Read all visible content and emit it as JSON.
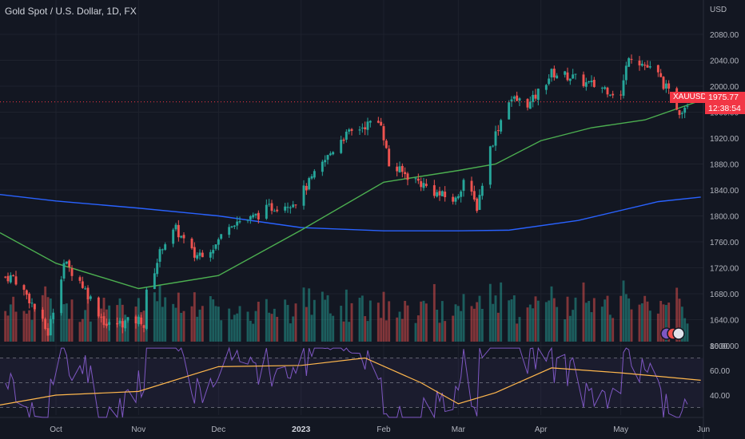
{
  "header": {
    "title": "Gold Spot / U.S. Dollar, 1D, FX"
  },
  "price_axis": {
    "currency": "USD",
    "ticks": [
      "2080.00",
      "2040.00",
      "2000.00",
      "1960.00",
      "1920.00",
      "1880.00",
      "1840.00",
      "1800.00",
      "1760.00",
      "1720.00",
      "1680.00",
      "1640.00",
      "1600.00"
    ]
  },
  "rsi_axis": {
    "ticks": [
      "80.00",
      "60.00",
      "40.00"
    ]
  },
  "time_axis": {
    "labels": [
      "Oct",
      "Nov",
      "Dec",
      "2023",
      "Feb",
      "Mar",
      "Apr",
      "May",
      "Jun"
    ]
  },
  "last_price": {
    "symbol": "XAUUSD",
    "value": "1975.77",
    "countdown": "12:38:54"
  },
  "colors": {
    "background": "#131722",
    "up": "#26a69a",
    "down": "#ef5350",
    "ma_fast": "#4caf50",
    "ma_slow": "#2962ff",
    "rsi": "#7e57c2",
    "rsi_ma": "#ffb74d"
  },
  "chart_data": {
    "type": "candlestick",
    "x_range": [
      "2022-09-10",
      "2023-06-01"
    ],
    "price_range": [
      1590,
      2100
    ],
    "rsi_range": [
      20,
      85
    ],
    "rsi_levels": [
      70,
      50,
      30
    ],
    "anchors": [
      [
        "2022-09-15",
        1706
      ],
      [
        "2022-09-21",
        1672
      ],
      [
        "2022-09-28",
        1619
      ],
      [
        "2022-10-04",
        1728
      ],
      [
        "2022-10-10",
        1700
      ],
      [
        "2022-10-20",
        1631
      ],
      [
        "2022-11-02",
        1640
      ],
      [
        "2022-11-03",
        1630
      ],
      [
        "2022-11-04",
        1680
      ],
      [
        "2022-11-10",
        1755
      ],
      [
        "2022-11-15",
        1779
      ],
      [
        "2022-11-22",
        1738
      ],
      [
        "2022-11-30",
        1755
      ],
      [
        "2022-12-05",
        1790
      ],
      [
        "2022-12-13",
        1795
      ],
      [
        "2022-12-20",
        1812
      ],
      [
        "2022-12-30",
        1823
      ],
      [
        "2023-01-06",
        1862
      ],
      [
        "2023-01-16",
        1920
      ],
      [
        "2023-01-25",
        1940
      ],
      [
        "2023-01-31",
        1945
      ],
      [
        "2023-02-03",
        1878
      ],
      [
        "2023-02-14",
        1853
      ],
      [
        "2023-02-22",
        1832
      ],
      [
        "2023-02-28",
        1824
      ],
      [
        "2023-03-03",
        1856
      ],
      [
        "2023-03-08",
        1814
      ],
      [
        "2023-03-13",
        1905
      ],
      [
        "2023-03-20",
        1981
      ],
      [
        "2023-03-28",
        1973
      ],
      [
        "2023-04-05",
        2020
      ],
      [
        "2023-04-12",
        2015
      ],
      [
        "2023-04-18",
        2004
      ],
      [
        "2023-04-25",
        1997
      ],
      [
        "2023-05-01",
        1985
      ],
      [
        "2023-05-04",
        2050
      ],
      [
        "2023-05-09",
        2035
      ],
      [
        "2023-05-15",
        2017
      ],
      [
        "2023-05-23",
        1962
      ],
      [
        "2023-05-26",
        1975
      ]
    ],
    "ma_slow": [
      [
        "2022-09-10",
        1833
      ],
      [
        "2022-10-01",
        1823
      ],
      [
        "2022-11-01",
        1812
      ],
      [
        "2022-12-01",
        1800
      ],
      [
        "2023-01-01",
        1782
      ],
      [
        "2023-02-01",
        1777
      ],
      [
        "2023-03-01",
        1777
      ],
      [
        "2023-03-20",
        1778
      ],
      [
        "2023-04-15",
        1793
      ],
      [
        "2023-05-15",
        1822
      ],
      [
        "2023-05-31",
        1829
      ]
    ],
    "ma_fast": [
      [
        "2022-09-10",
        1774
      ],
      [
        "2022-10-01",
        1727
      ],
      [
        "2022-11-01",
        1688
      ],
      [
        "2022-12-01",
        1708
      ],
      [
        "2023-01-01",
        1778
      ],
      [
        "2023-02-01",
        1852
      ],
      [
        "2023-03-01",
        1870
      ],
      [
        "2023-03-15",
        1880
      ],
      [
        "2023-04-01",
        1916
      ],
      [
        "2023-04-20",
        1936
      ],
      [
        "2023-05-10",
        1948
      ],
      [
        "2023-05-31",
        1978
      ]
    ],
    "rsi_ma": [
      [
        "2022-09-10",
        32
      ],
      [
        "2022-10-01",
        40
      ],
      [
        "2022-11-01",
        43
      ],
      [
        "2022-12-01",
        63
      ],
      [
        "2023-01-01",
        64
      ],
      [
        "2023-01-25",
        70
      ],
      [
        "2023-02-15",
        50
      ],
      [
        "2023-03-01",
        33
      ],
      [
        "2023-03-15",
        42
      ],
      [
        "2023-04-05",
        62
      ],
      [
        "2023-05-01",
        58
      ],
      [
        "2023-05-31",
        52
      ]
    ],
    "last": 1975.77
  }
}
